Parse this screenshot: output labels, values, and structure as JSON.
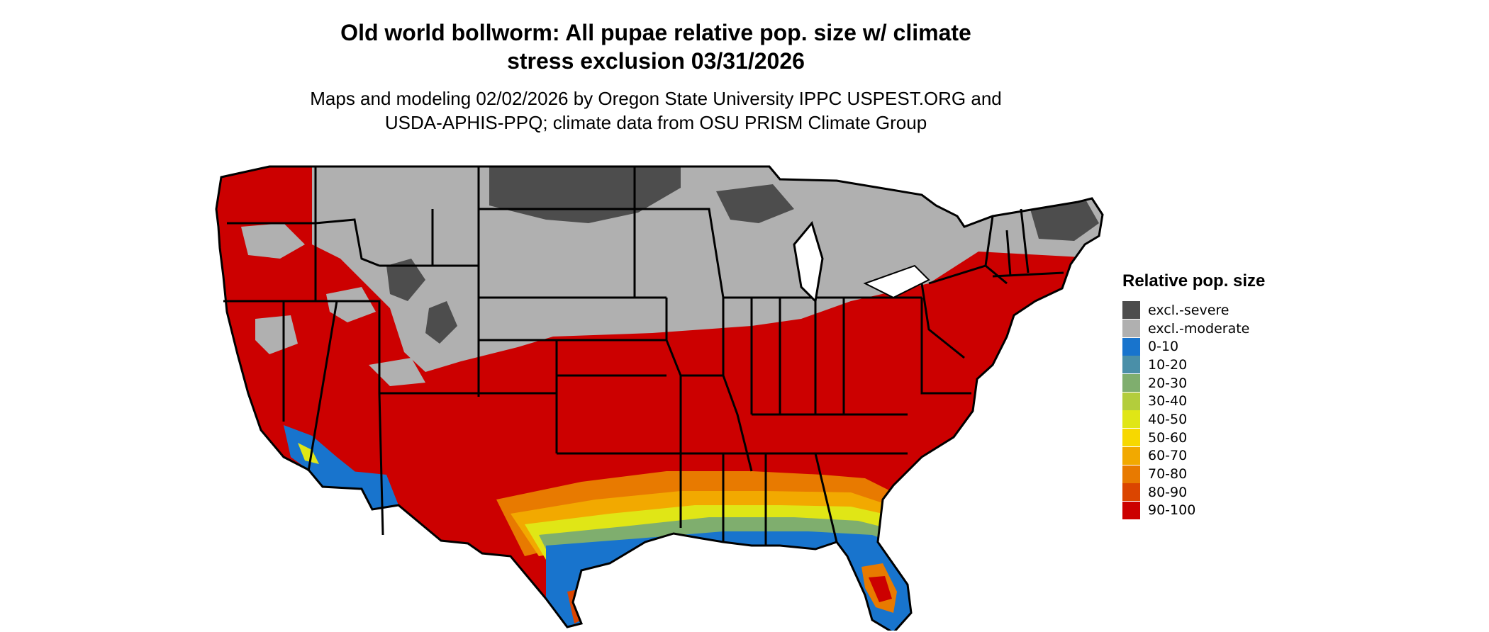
{
  "title_line1": "Old world bollworm: All pupae relative pop. size w/ climate",
  "title_line2": "stress exclusion 03/31/2026",
  "subtitle_line1": "Maps and modeling 02/02/2026 by Oregon State University IPPC USPEST.ORG and",
  "subtitle_line2": "USDA-APHIS-PPQ; climate data from OSU PRISM Climate Group",
  "legend": {
    "title": "Relative pop. size",
    "items": [
      {
        "label": "excl.-severe",
        "color": "#4d4d4d"
      },
      {
        "label": "excl.-moderate",
        "color": "#b0b0b0"
      },
      {
        "label": "0-10",
        "color": "#1874cd"
      },
      {
        "label": "10-20",
        "color": "#4a8fa8"
      },
      {
        "label": "20-30",
        "color": "#7fae6e"
      },
      {
        "label": "30-40",
        "color": "#b3cd3c"
      },
      {
        "label": "40-50",
        "color": "#e0e616"
      },
      {
        "label": "50-60",
        "color": "#f7d800"
      },
      {
        "label": "60-70",
        "color": "#f2a900"
      },
      {
        "label": "70-80",
        "color": "#e87a00"
      },
      {
        "label": "80-90",
        "color": "#db4500"
      },
      {
        "label": "90-100",
        "color": "#cc0000"
      }
    ]
  }
}
